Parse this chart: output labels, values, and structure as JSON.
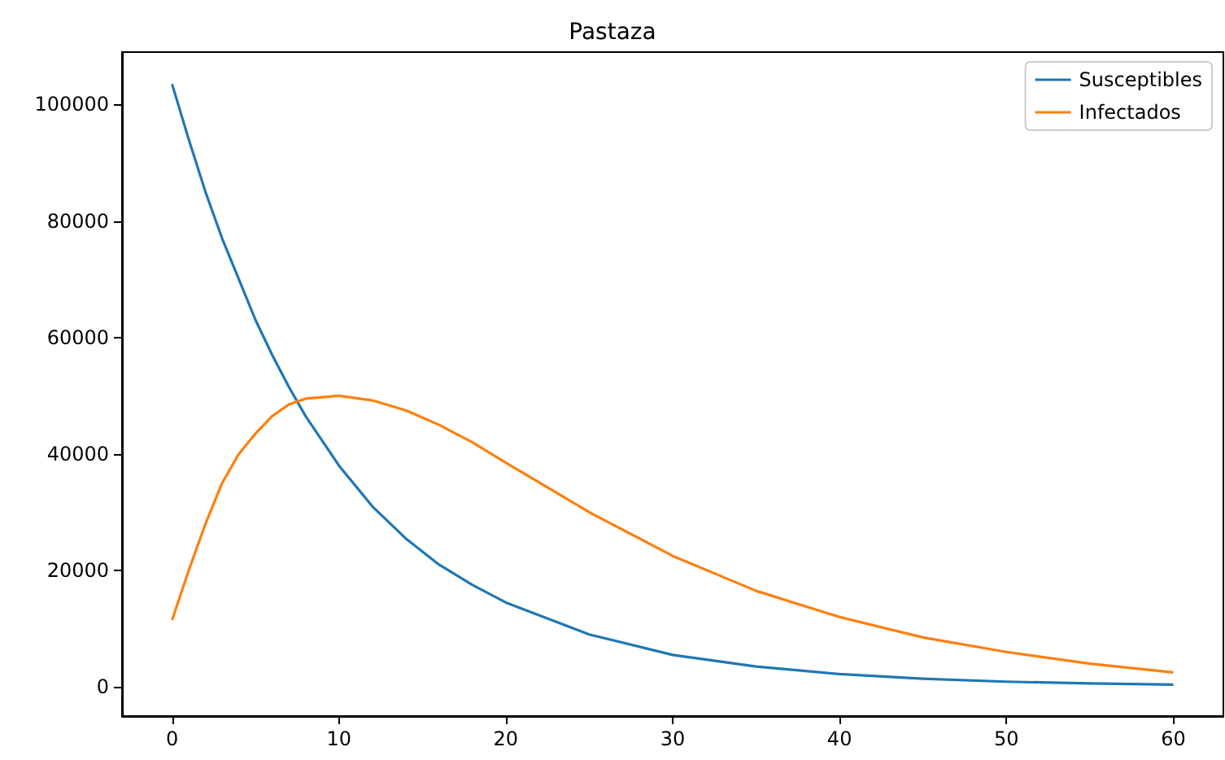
{
  "chart_data": {
    "type": "line",
    "title": "Pastaza",
    "x": [
      0,
      1,
      2,
      3,
      4,
      5,
      6,
      7,
      8,
      10,
      12,
      14,
      16,
      18,
      20,
      25,
      30,
      35,
      40,
      45,
      50,
      55,
      60
    ],
    "series": [
      {
        "name": "Susceptibles",
        "color": "#1f77b4",
        "values": [
          103500,
          94000,
          85000,
          77000,
          70000,
          63000,
          57000,
          51500,
          46500,
          38000,
          31000,
          25500,
          21000,
          17500,
          14500,
          9000,
          5500,
          3500,
          2200,
          1400,
          900,
          600,
          400
        ]
      },
      {
        "name": "Infectados",
        "color": "#ff7f0e",
        "values": [
          11500,
          20000,
          28000,
          35000,
          40000,
          43500,
          46500,
          48500,
          49500,
          50000,
          49200,
          47500,
          45000,
          42000,
          38500,
          30000,
          22500,
          16500,
          12000,
          8500,
          6000,
          4000,
          2500
        ]
      }
    ],
    "xlim": [
      -3,
      63
    ],
    "ylim": [
      -5000,
      109000
    ],
    "xticks": [
      0,
      10,
      20,
      30,
      40,
      50,
      60
    ],
    "yticks": [
      0,
      20000,
      40000,
      60000,
      80000,
      100000
    ],
    "legend": "top right",
    "grid": false,
    "marker": "none",
    "line_style": "solid"
  }
}
